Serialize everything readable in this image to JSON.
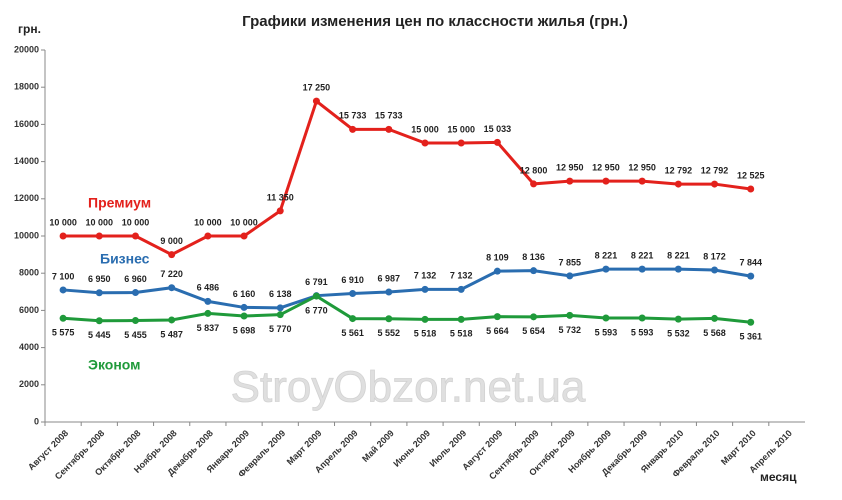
{
  "chart_data": {
    "type": "line",
    "title": "Графики изменения цен по классности жилья (грн.)",
    "y_label": "грн.",
    "x_label": "месяц",
    "watermark": "StroyObzor.net.ua",
    "categories": [
      "Август 2008",
      "Сентябрь 2008",
      "Октябрь 2008",
      "Ноябрь 2008",
      "Декабрь 2008",
      "Январь 2009",
      "Февраль 2009",
      "Март 2009",
      "Апрель 2009",
      "Май 2009",
      "Июнь 2009",
      "Июль 2009",
      "Август 2009",
      "Сентябрь 2009",
      "Октябрь 2009",
      "Ноябрь 2009",
      "Декабрь 2009",
      "Январь 2010",
      "Февраль 2010",
      "Март 2010",
      "Апрель 2010"
    ],
    "series": [
      {
        "name": "Премиум",
        "color": "#e3211c",
        "values": [
          10000,
          10000,
          10000,
          9000,
          10000,
          10000,
          11350,
          17250,
          15733,
          15733,
          15000,
          15000,
          15033,
          12800,
          12950,
          12950,
          12950,
          12792,
          12792,
          12525,
          null
        ],
        "value_labels": [
          "10 000",
          "10 000",
          "10 000",
          "9 000",
          "10 000",
          "10 000",
          "11 350",
          "17 250",
          "15 733",
          "15 733",
          "15 000",
          "15 000",
          "15 033",
          "12 800",
          "12 950",
          "12 950",
          "12 950",
          "12 792",
          "12 792",
          "12 525",
          null
        ]
      },
      {
        "name": "Бизнес",
        "color": "#2a6db0",
        "values": [
          7100,
          6950,
          6960,
          7220,
          6486,
          6160,
          6138,
          6791,
          6910,
          6987,
          7132,
          7132,
          8109,
          8136,
          7855,
          8221,
          8221,
          8221,
          8172,
          7844,
          null
        ],
        "value_labels": [
          "7 100",
          "6 950",
          "6 960",
          "7 220",
          "6 486",
          "6 160",
          "6 138",
          "6 791",
          "6 910",
          "6 987",
          "7 132",
          "7 132",
          "8 109",
          "8 136",
          "7 855",
          "8 221",
          "8 221",
          "8 221",
          "8 172",
          "7 844",
          null
        ]
      },
      {
        "name": "Эконом",
        "color": "#1f9a3a",
        "values": [
          5575,
          5445,
          5455,
          5487,
          5837,
          5698,
          5770,
          6770,
          5561,
          5552,
          5518,
          5518,
          5664,
          5654,
          5732,
          5593,
          5593,
          5532,
          5568,
          5361,
          null
        ],
        "value_labels": [
          "5 575",
          "5 445",
          "5 455",
          "5 487",
          "5 837",
          "5 698",
          "5 770",
          "6 770",
          "5 561",
          "5 552",
          "5 518",
          "5 518",
          "5 664",
          "5 654",
          "5 732",
          "5 593",
          "5 593",
          "5 532",
          "5 568",
          "5 361",
          null
        ]
      }
    ],
    "ylim": [
      0,
      20000
    ],
    "yticks": [
      0,
      2000,
      4000,
      6000,
      8000,
      10000,
      12000,
      14000,
      16000,
      18000,
      20000
    ]
  }
}
